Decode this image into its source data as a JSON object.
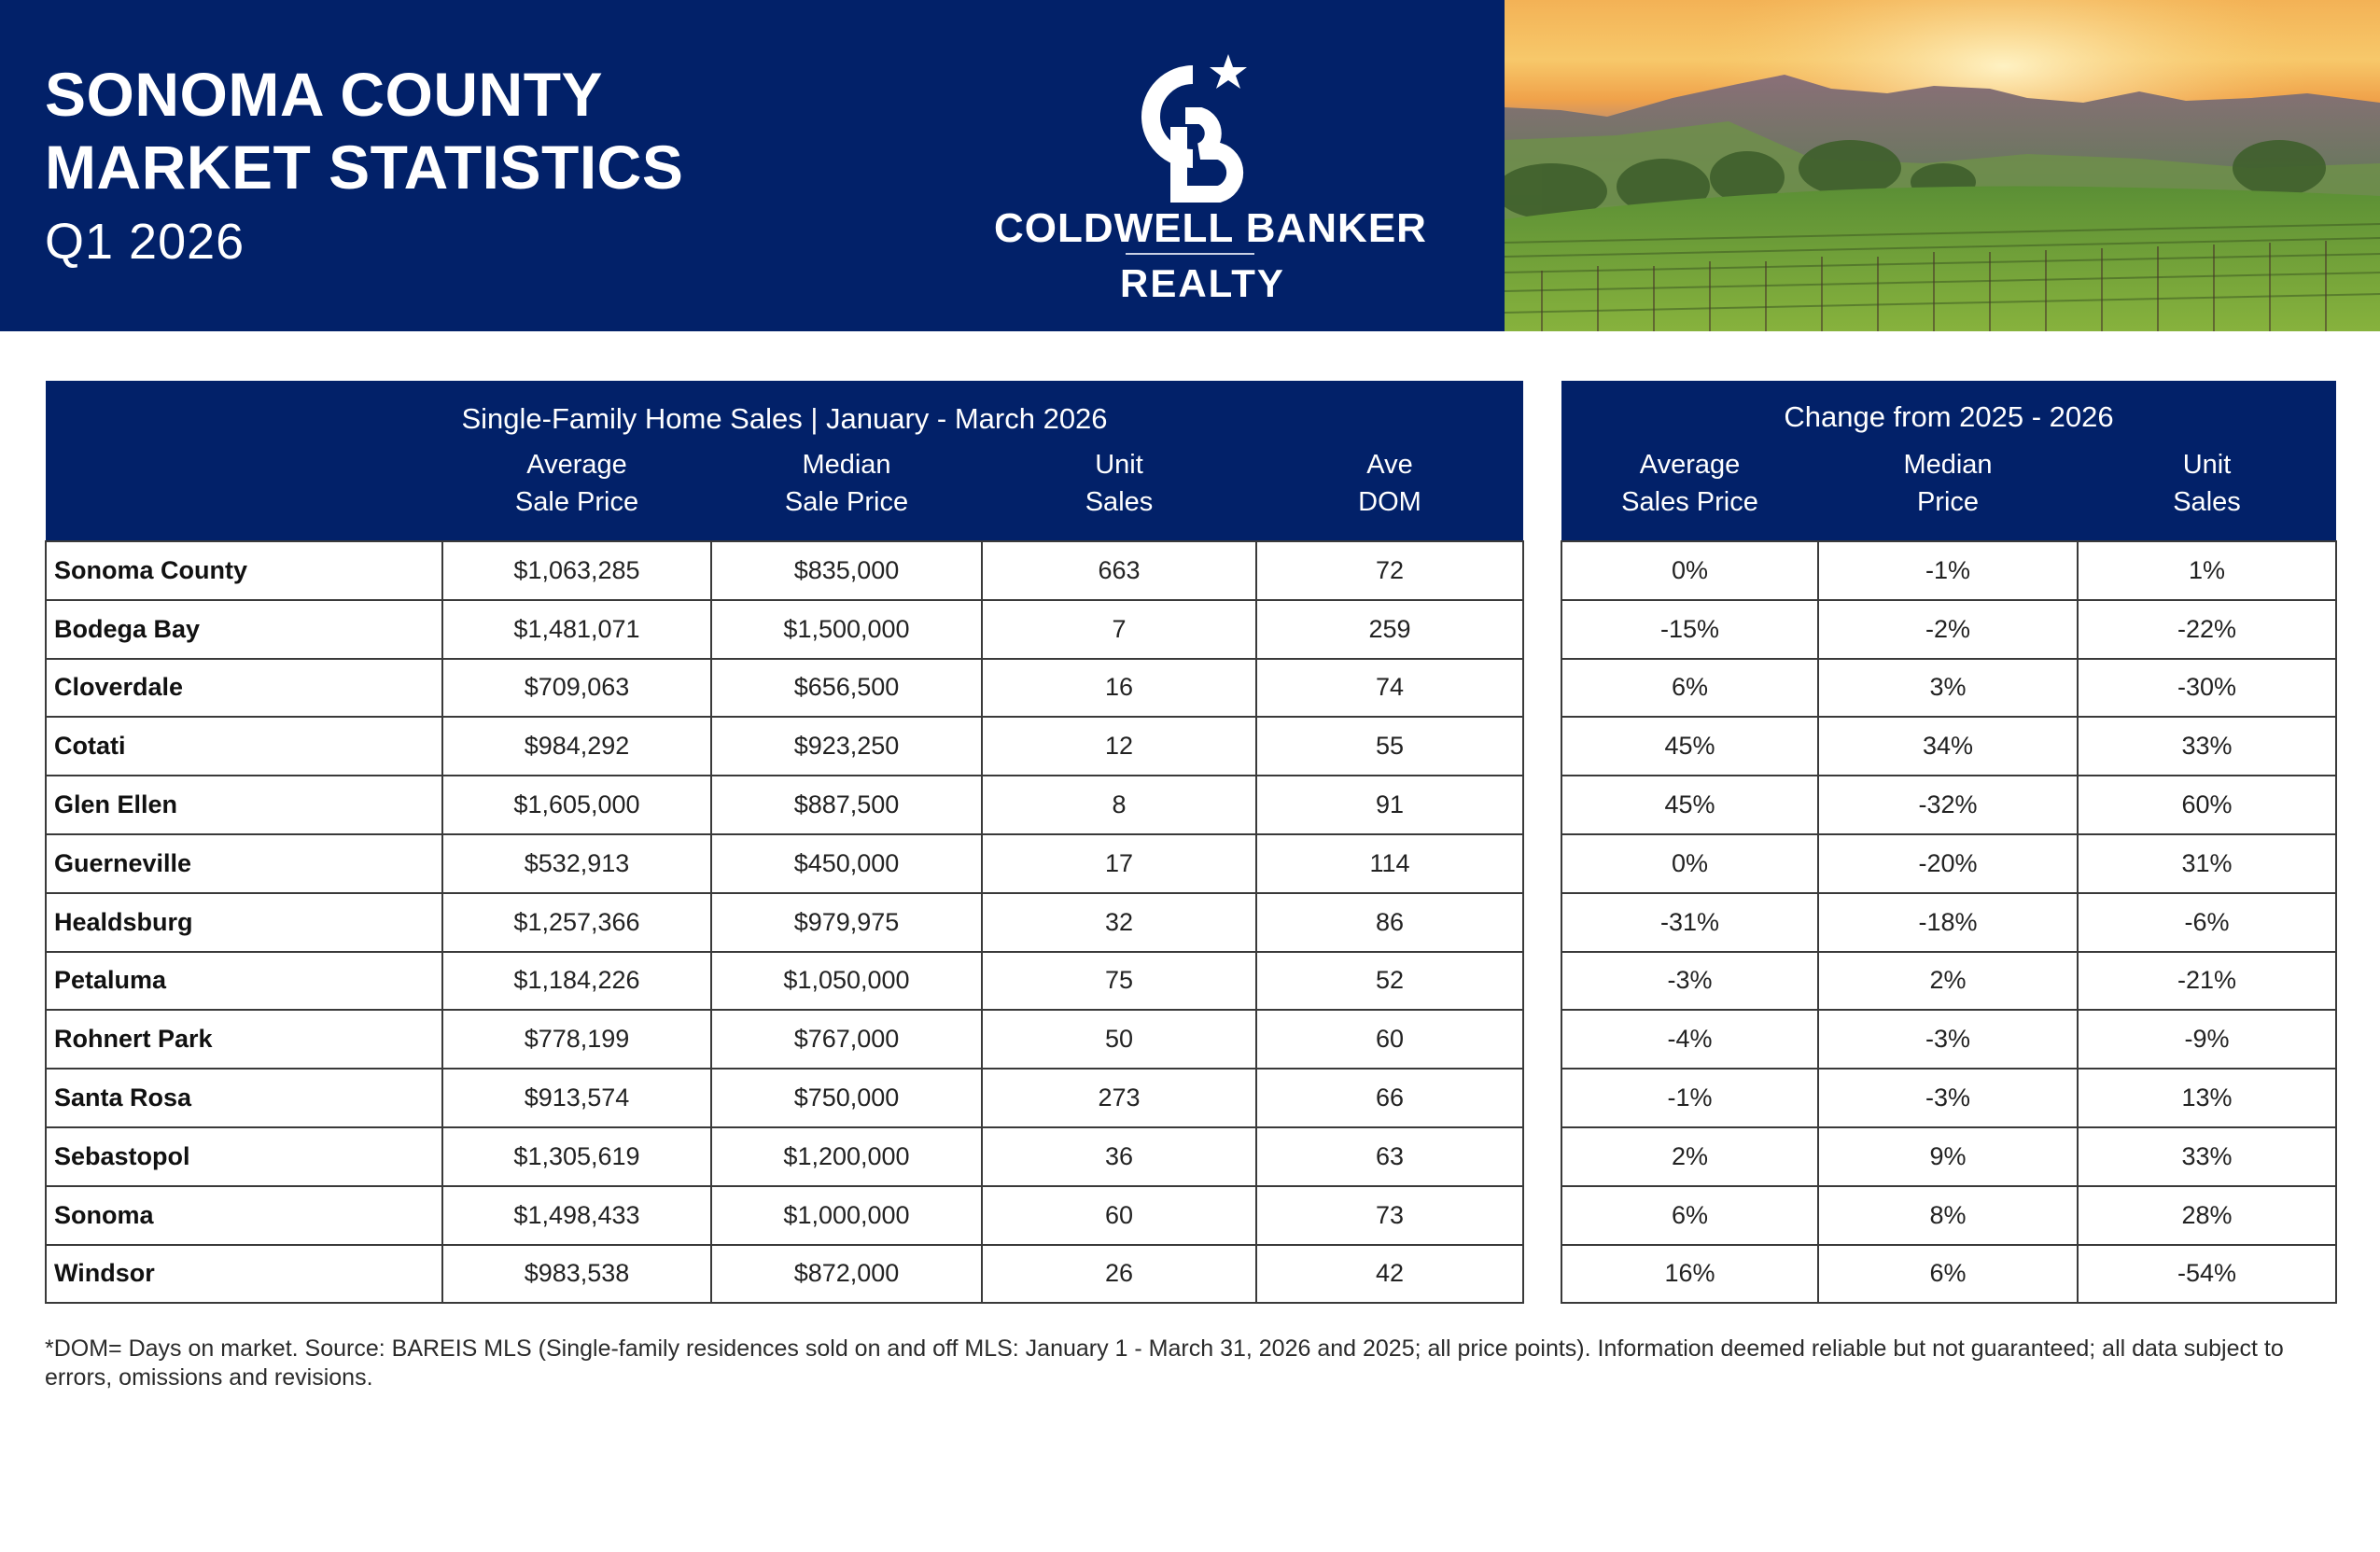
{
  "header": {
    "title_line1": "SONOMA COUNTY",
    "title_line2": "MARKET STATISTICS",
    "subtitle": "Q1 2026",
    "background_color": "#022169"
  },
  "logo": {
    "monogram": "CB",
    "brand": "COLDWELL BANKER",
    "division": "REALTY",
    "icon": "star-icon"
  },
  "photo": {
    "description": "vineyard-sunset-icon"
  },
  "sales_table": {
    "caption": "Single-Family Home Sales | January - March 2026",
    "columns": [
      {
        "line1": "",
        "line2": ""
      },
      {
        "line1": "Average",
        "line2": "Sale Price"
      },
      {
        "line1": "Median",
        "line2": "Sale Price"
      },
      {
        "line1": "Unit",
        "line2": "Sales"
      },
      {
        "line1": "Ave",
        "line2": "DOM"
      }
    ],
    "rows": [
      {
        "area": "Sonoma County",
        "avg_price": "$1,063,285",
        "median_price": "$835,000",
        "units": "663",
        "dom": "72"
      },
      {
        "area": "Bodega Bay",
        "avg_price": "$1,481,071",
        "median_price": "$1,500,000",
        "units": "7",
        "dom": "259"
      },
      {
        "area": "Cloverdale",
        "avg_price": "$709,063",
        "median_price": "$656,500",
        "units": "16",
        "dom": "74"
      },
      {
        "area": "Cotati",
        "avg_price": "$984,292",
        "median_price": "$923,250",
        "units": "12",
        "dom": "55"
      },
      {
        "area": "Glen Ellen",
        "avg_price": "$1,605,000",
        "median_price": "$887,500",
        "units": "8",
        "dom": "91"
      },
      {
        "area": "Guerneville",
        "avg_price": "$532,913",
        "median_price": "$450,000",
        "units": "17",
        "dom": "114"
      },
      {
        "area": "Healdsburg",
        "avg_price": "$1,257,366",
        "median_price": "$979,975",
        "units": "32",
        "dom": "86"
      },
      {
        "area": "Petaluma",
        "avg_price": "$1,184,226",
        "median_price": "$1,050,000",
        "units": "75",
        "dom": "52"
      },
      {
        "area": "Rohnert Park",
        "avg_price": "$778,199",
        "median_price": "$767,000",
        "units": "50",
        "dom": "60"
      },
      {
        "area": "Santa Rosa",
        "avg_price": "$913,574",
        "median_price": "$750,000",
        "units": "273",
        "dom": "66"
      },
      {
        "area": "Sebastopol",
        "avg_price": "$1,305,619",
        "median_price": "$1,200,000",
        "units": "36",
        "dom": "63"
      },
      {
        "area": "Sonoma",
        "avg_price": "$1,498,433",
        "median_price": "$1,000,000",
        "units": "60",
        "dom": "73"
      },
      {
        "area": "Windsor",
        "avg_price": "$983,538",
        "median_price": "$872,000",
        "units": "26",
        "dom": "42"
      }
    ]
  },
  "change_table": {
    "caption": "Change from 2025 - 2026",
    "columns": [
      {
        "line1": "Average",
        "line2": "Sales Price"
      },
      {
        "line1": "Median",
        "line2": "Price"
      },
      {
        "line1": "Unit",
        "line2": "Sales"
      }
    ],
    "rows": [
      {
        "avg": "0%",
        "median": "-1%",
        "units": "1%"
      },
      {
        "avg": "-15%",
        "median": "-2%",
        "units": "-22%"
      },
      {
        "avg": "6%",
        "median": "3%",
        "units": "-30%"
      },
      {
        "avg": "45%",
        "median": "34%",
        "units": "33%"
      },
      {
        "avg": "45%",
        "median": "-32%",
        "units": "60%"
      },
      {
        "avg": "0%",
        "median": "-20%",
        "units": "31%"
      },
      {
        "avg": "-31%",
        "median": "-18%",
        "units": "-6%"
      },
      {
        "avg": "-3%",
        "median": "2%",
        "units": "-21%"
      },
      {
        "avg": "-4%",
        "median": "-3%",
        "units": "-9%"
      },
      {
        "avg": "-1%",
        "median": "-3%",
        "units": "13%"
      },
      {
        "avg": "2%",
        "median": "9%",
        "units": "33%"
      },
      {
        "avg": "6%",
        "median": "8%",
        "units": "28%"
      },
      {
        "avg": "16%",
        "median": "6%",
        "units": "-54%"
      }
    ]
  },
  "footnote": "*DOM= Days on market. Source: BAREIS MLS (Single-family residences sold on and off MLS: January 1 - March 31, 2026 and 2025; all price points). Information deemed reliable but not guaranteed; all data subject to errors, omissions and revisions."
}
